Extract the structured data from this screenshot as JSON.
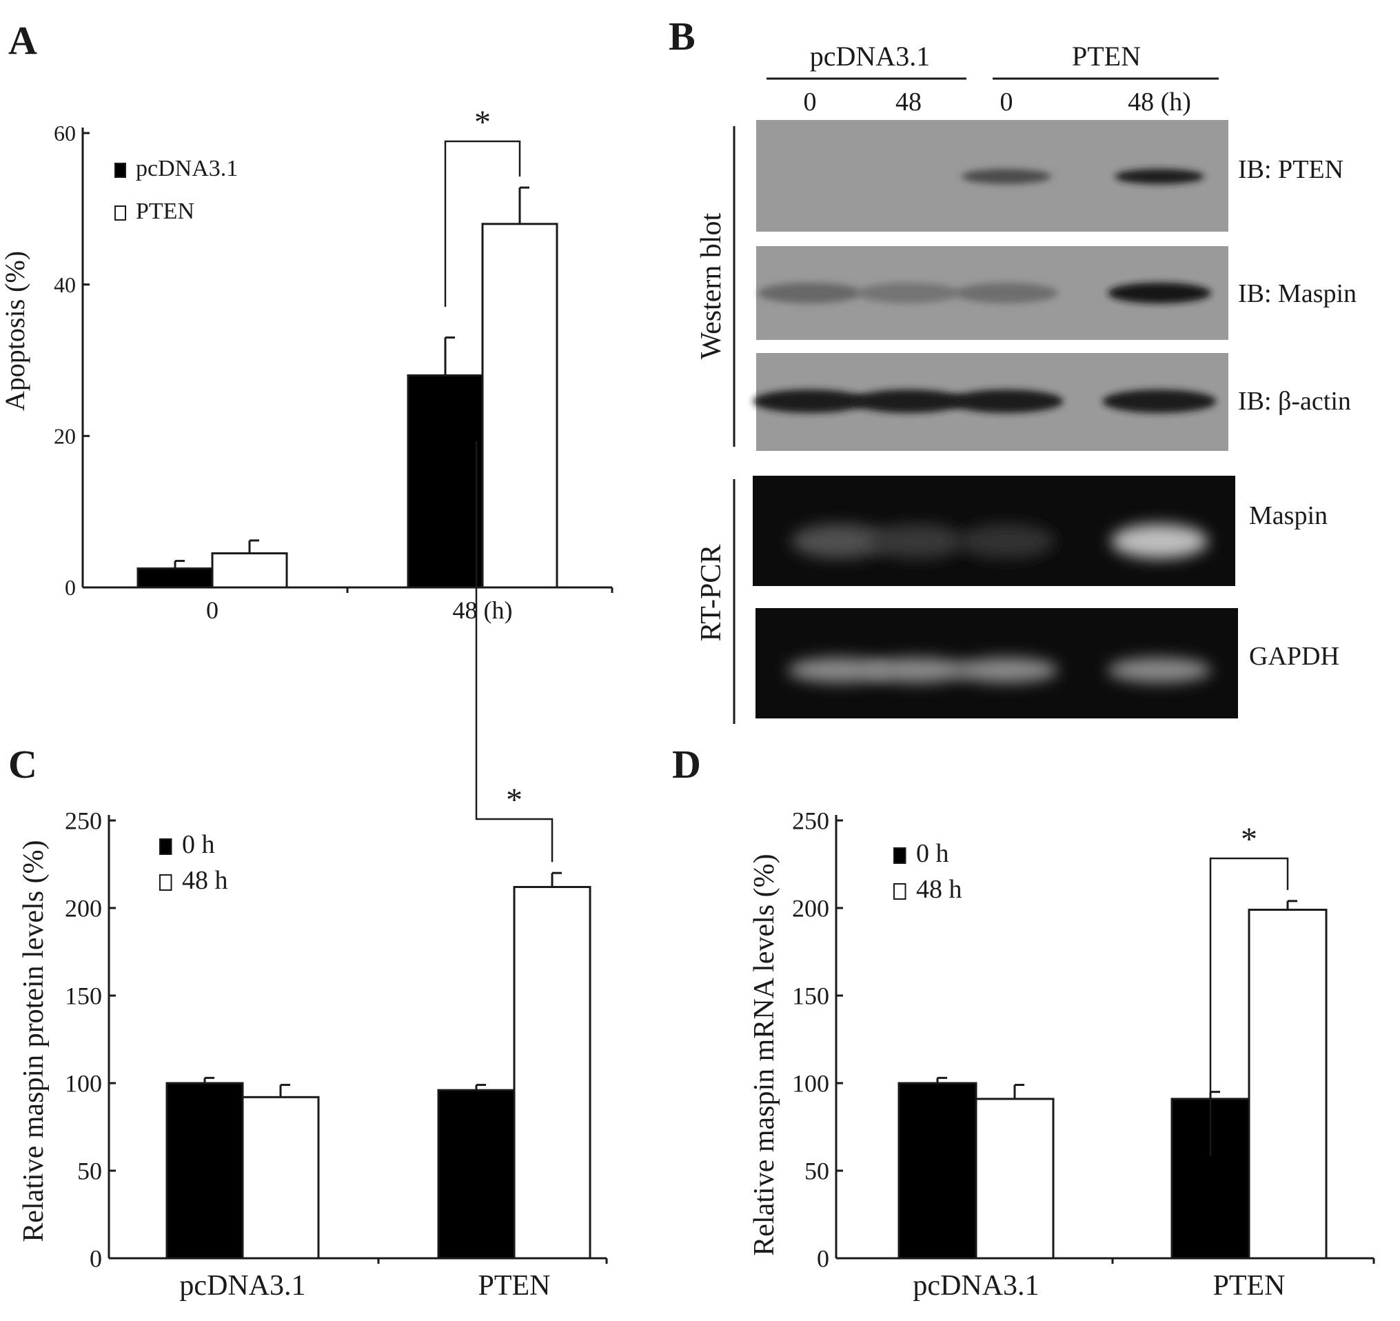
{
  "panels": {
    "A": "A",
    "B": "B",
    "C": "C",
    "D": "D"
  },
  "chart_data": [
    {
      "panel": "A",
      "type": "bar",
      "categories": [
        "0",
        "48 (h)"
      ],
      "series": [
        {
          "name": "pcDNA3.1",
          "values": [
            2.5,
            28
          ],
          "errors": [
            1.0,
            5.0
          ],
          "color": "#000000"
        },
        {
          "name": "PTEN",
          "values": [
            4.5,
            48
          ],
          "errors": [
            1.7,
            4.8
          ],
          "color": "#ffffff"
        }
      ],
      "xlabel": "",
      "ylabel": "Apoptosis (%)",
      "ylim": [
        0,
        60
      ],
      "yticks": [
        "0",
        "20",
        "40",
        "60"
      ],
      "grid": false,
      "legend_placement": "top-left",
      "significance": {
        "category": "48 (h)",
        "label": "*"
      }
    },
    {
      "panel": "C",
      "type": "bar",
      "categories": [
        "pcDNA3.1",
        "PTEN"
      ],
      "series": [
        {
          "name": "0 h",
          "values": [
            100,
            96
          ],
          "errors": [
            3,
            3
          ],
          "color": "#000000"
        },
        {
          "name": "48 h",
          "values": [
            92,
            212
          ],
          "errors": [
            7,
            8
          ],
          "color": "#ffffff"
        }
      ],
      "xlabel": "",
      "ylabel": "Relative maspin protein levels (%)",
      "ylim": [
        0,
        250
      ],
      "yticks": [
        "0",
        "50",
        "100",
        "150",
        "200",
        "250"
      ],
      "grid": false,
      "legend_placement": "top-left",
      "significance": {
        "category": "PTEN",
        "label": "*"
      }
    },
    {
      "panel": "D",
      "type": "bar",
      "categories": [
        "pcDNA3.1",
        "PTEN"
      ],
      "series": [
        {
          "name": "0 h",
          "values": [
            100,
            91
          ],
          "errors": [
            3,
            4
          ],
          "color": "#000000"
        },
        {
          "name": "48 h",
          "values": [
            91,
            199
          ],
          "errors": [
            8,
            5
          ],
          "color": "#ffffff"
        }
      ],
      "xlabel": "",
      "ylabel": "Relative maspin mRNA levels (%)",
      "ylim": [
        0,
        250
      ],
      "yticks": [
        "0",
        "50",
        "100",
        "150",
        "200",
        "250"
      ],
      "grid": false,
      "legend_placement": "top-left",
      "significance": {
        "category": "PTEN",
        "label": "*"
      }
    }
  ],
  "blot": {
    "group_labels": [
      "pcDNA3.1",
      "PTEN"
    ],
    "lane_labels": [
      "0",
      "48",
      "0",
      "48 (h)"
    ],
    "western_label": "Western blot",
    "rtpcr_label": "RT-PCR",
    "western_rows": [
      {
        "label": "IB: PTEN",
        "intensities": [
          0,
          0,
          0.55,
          0.9
        ]
      },
      {
        "label": "IB: Maspin",
        "intensities": [
          0.35,
          0.25,
          0.3,
          0.95
        ]
      },
      {
        "label": "IB: β-actin",
        "intensities": [
          0.9,
          0.9,
          0.9,
          0.9
        ]
      }
    ],
    "rtpcr_rows": [
      {
        "label": "Maspin",
        "intensities": [
          0.3,
          0.18,
          0.15,
          0.85
        ]
      },
      {
        "label": "GAPDH",
        "intensities": [
          0.6,
          0.6,
          0.6,
          0.6
        ]
      }
    ]
  }
}
